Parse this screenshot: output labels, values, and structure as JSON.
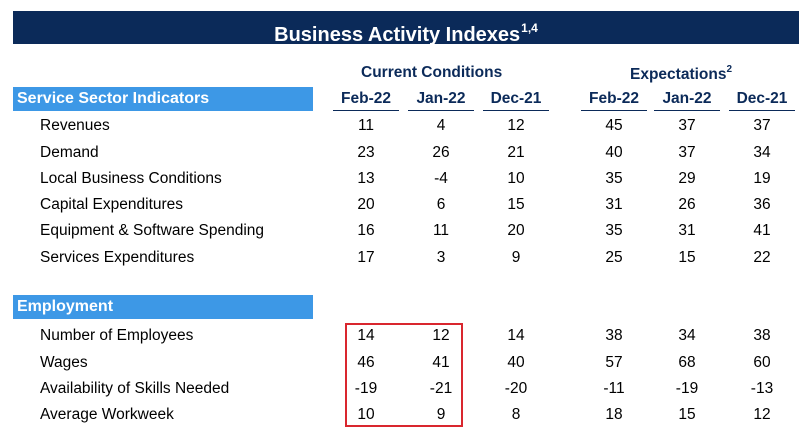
{
  "title": {
    "text": "Business Activity Indexes",
    "sup": "1,4"
  },
  "groups": {
    "current": {
      "label": "Current Conditions"
    },
    "expectations": {
      "label": "Expectations",
      "sup": "2"
    }
  },
  "columns": [
    "Feb-22",
    "Jan-22",
    "Dec-21",
    "Feb-22",
    "Jan-22",
    "Dec-21"
  ],
  "sections": [
    {
      "title": "Service Sector Indicators",
      "rows": [
        {
          "label": "Revenues",
          "values": [
            "11",
            "4",
            "12",
            "45",
            "37",
            "37"
          ]
        },
        {
          "label": "Demand",
          "values": [
            "23",
            "26",
            "21",
            "40",
            "37",
            "34"
          ]
        },
        {
          "label": "Local Business Conditions",
          "values": [
            "13",
            "-4",
            "10",
            "35",
            "29",
            "19"
          ]
        },
        {
          "label": "Capital Expenditures",
          "values": [
            "20",
            "6",
            "15",
            "31",
            "26",
            "36"
          ]
        },
        {
          "label": "Equipment & Software Spending",
          "values": [
            "16",
            "11",
            "20",
            "35",
            "31",
            "41"
          ]
        },
        {
          "label": "Services Expenditures",
          "values": [
            "17",
            "3",
            "9",
            "25",
            "15",
            "22"
          ]
        }
      ]
    },
    {
      "title": "Employment",
      "rows": [
        {
          "label": "Number of Employees",
          "values": [
            "14",
            "12",
            "14",
            "38",
            "34",
            "38"
          ]
        },
        {
          "label": "Wages",
          "values": [
            "46",
            "41",
            "40",
            "57",
            "68",
            "60"
          ]
        },
        {
          "label": "Availability of Skills Needed",
          "values": [
            "-19",
            "-21",
            "-20",
            "-11",
            "-19",
            "-13"
          ]
        },
        {
          "label": "Average Workweek",
          "values": [
            "10",
            "9",
            "8",
            "18",
            "15",
            "12"
          ]
        }
      ]
    }
  ],
  "colors": {
    "navy": "#0b2a59",
    "section_blue": "#3d98e6",
    "highlight_red": "#d9262e"
  }
}
